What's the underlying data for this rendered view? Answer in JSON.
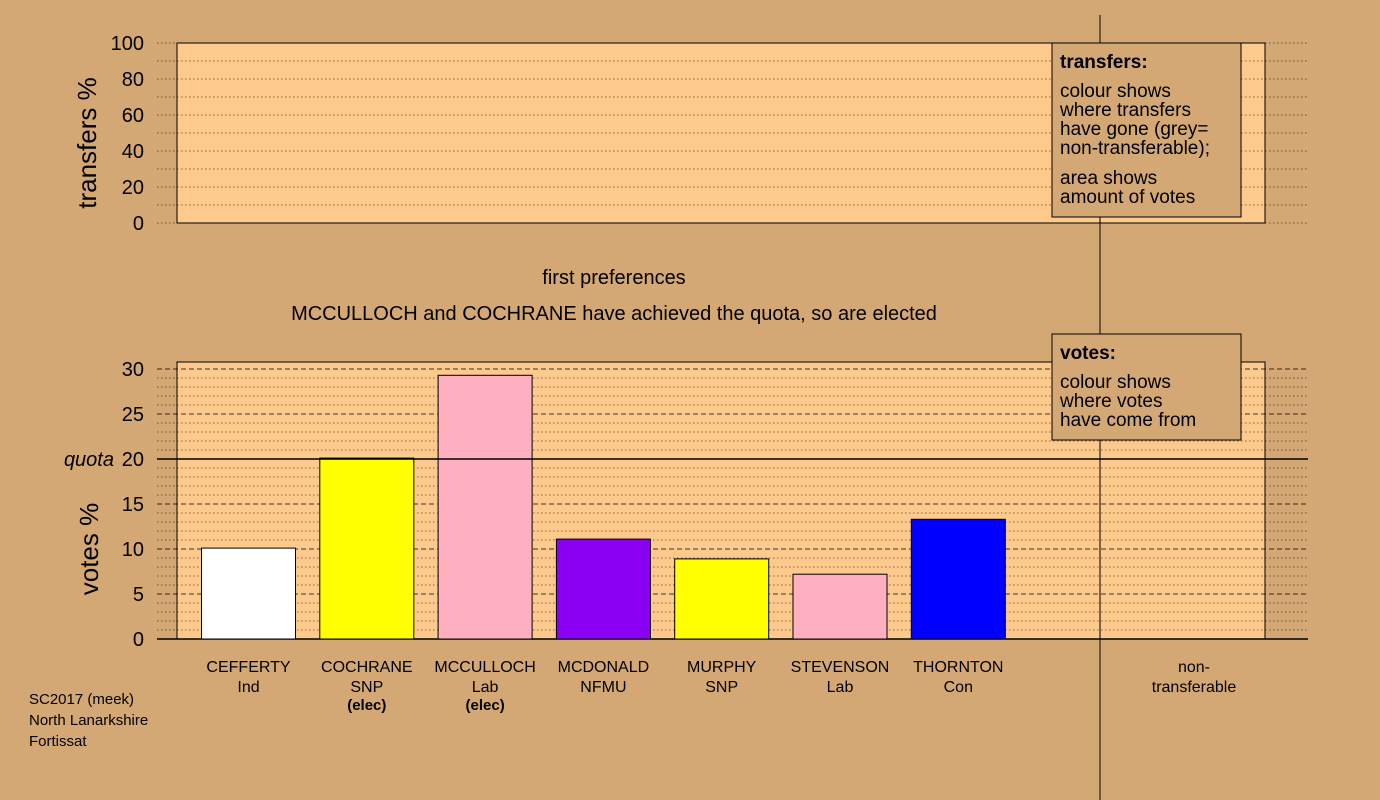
{
  "headings": {
    "stage": "first preferences",
    "status": "MCCULLOCH and COCHRANE have achieved the quota, so are elected"
  },
  "footer": [
    "SC2017 (meek)",
    "North Lanarkshire",
    "Fortissat"
  ],
  "colors": {
    "background": "#d4a874",
    "plot_area": "#fdc98c",
    "legend_box": "#d4a874"
  },
  "chart_data": [
    {
      "type": "bar",
      "ylabel": "transfers %",
      "ylim": [
        0,
        100
      ],
      "yticks": [
        0,
        20,
        40,
        60,
        80,
        100
      ],
      "grid": "dotted",
      "values": [],
      "legend": {
        "title": "transfers:",
        "placement": "top-right",
        "paragraphs": [
          [
            "colour shows",
            "where transfers",
            "have gone (grey=",
            "non-transferable);"
          ],
          [
            "area shows",
            "amount of votes"
          ]
        ]
      }
    },
    {
      "type": "bar",
      "ylabel": "votes %",
      "ylim": [
        0,
        30
      ],
      "yticks": [
        0,
        5,
        10,
        15,
        20,
        25,
        30
      ],
      "grid": "dotted",
      "quota": {
        "label": "quota",
        "value": 20
      },
      "categories": [
        {
          "name": "CEFFERTY",
          "party": "Ind",
          "elected": "",
          "value": 10.1,
          "color": "#ffffff"
        },
        {
          "name": "COCHRANE",
          "party": "SNP",
          "elected": "(elec)",
          "value": 20.1,
          "color": "#ffff00"
        },
        {
          "name": "MCCULLOCH",
          "party": "Lab",
          "elected": "(elec)",
          "value": 29.3,
          "color": "#ffb0c0"
        },
        {
          "name": "MCDONALD",
          "party": "NFMU",
          "elected": "",
          "value": 11.1,
          "color": "#8b00f0"
        },
        {
          "name": "MURPHY",
          "party": "SNP",
          "elected": "",
          "value": 8.9,
          "color": "#ffff00"
        },
        {
          "name": "STEVENSON",
          "party": "Lab",
          "elected": "",
          "value": 7.2,
          "color": "#ffb0c0"
        },
        {
          "name": "THORNTON",
          "party": "Con",
          "elected": "",
          "value": 13.3,
          "color": "#0000ff"
        }
      ],
      "nontransferable_label": [
        "non-",
        "transferable"
      ],
      "legend": {
        "title": "votes:",
        "placement": "top-right",
        "paragraphs": [
          [
            "colour shows",
            "where votes",
            "have come from"
          ]
        ]
      }
    }
  ]
}
